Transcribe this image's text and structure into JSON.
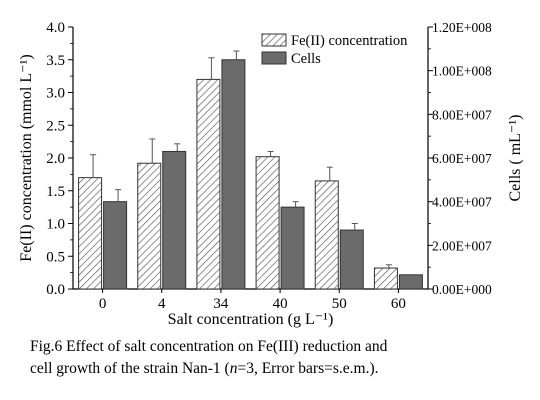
{
  "chart_data": {
    "type": "bar",
    "categories": [
      "0",
      "4",
      "34",
      "40",
      "50",
      "60"
    ],
    "series": [
      {
        "name": "Fe(II) concentration",
        "axis": "left",
        "values": [
          1.7,
          1.92,
          3.2,
          2.02,
          1.65,
          0.32
        ],
        "errors": [
          0.35,
          0.37,
          0.33,
          0.08,
          0.21,
          0.05
        ],
        "pattern": "hatched",
        "color": "#ffffff"
      },
      {
        "name": "Cells",
        "axis": "right",
        "values": [
          40000000.0,
          63000000.0,
          105000000.0,
          37500000.0,
          27000000.0,
          6500000.0
        ],
        "errors": [
          5500000.0,
          3500000.0,
          4000000.0,
          2500000.0,
          3000000.0,
          0.0
        ],
        "pattern": "solid",
        "color": "#6b6b6b"
      }
    ],
    "xlabel": "Salt concentration (g L⁻¹)",
    "ylabel_left": "Fe(II) concentration (mmol L⁻¹)",
    "ylabel_right": "Cells ( mL⁻¹)",
    "ylim_left": [
      0,
      4.0
    ],
    "ylim_right": [
      0,
      120000000.0
    ],
    "yticks_left": [
      "0.0",
      "0.5",
      "1.0",
      "1.5",
      "2.0",
      "2.5",
      "3.0",
      "3.5",
      "4.0"
    ],
    "yticks_right": [
      "0.00E+000",
      "2.00E+007",
      "4.00E+007",
      "6.00E+007",
      "8.00E+007",
      "1.00E+008",
      "1.20E+008"
    ],
    "legend_position": "top-right",
    "grid": false
  },
  "caption": {
    "line1": "Fig.6 Effect of salt concentration on Fe(III) reduction and",
    "line2_pre": "cell growth of the strain Nan-1 (",
    "line2_italic": "n",
    "line2_post": "=3, Error bars=s.e.m.)."
  }
}
